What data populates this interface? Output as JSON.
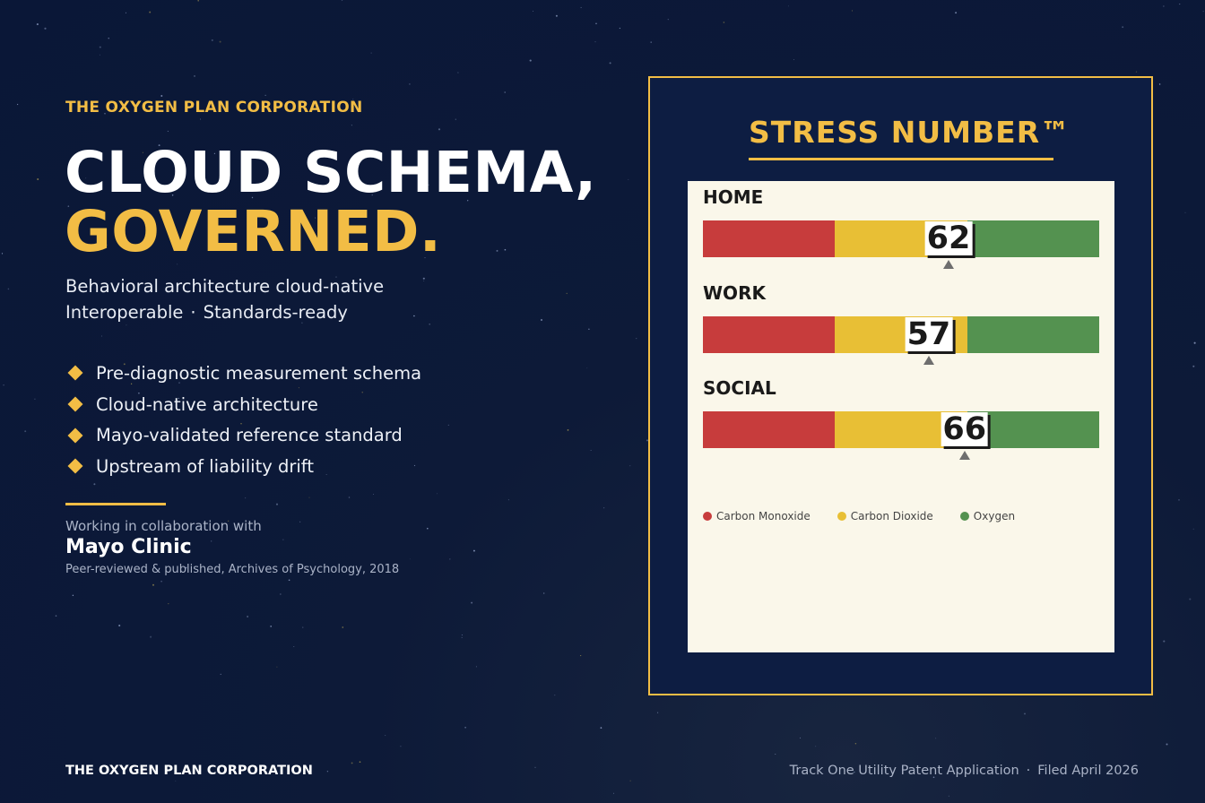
{
  "left": {
    "kicker": "THE OXYGEN PLAN CORPORATION",
    "headline_line1": "CLOUD SCHEMA,",
    "headline_line2": "GOVERNED.",
    "subtitle_line1": "Behavioral architecture cloud-native",
    "subtitle_line2_a": "Interoperable",
    "subtitle_sep": "·",
    "subtitle_line2_b": "Standards-ready",
    "bullets": [
      "Pre-diagnostic measurement schema",
      "Cloud-native architecture",
      "Mayo-validated reference standard",
      "Upstream of liability drift"
    ],
    "collab_label": "Working in collaboration with",
    "collab_partner": "Mayo Clinic",
    "collab_note": "Peer-reviewed & published, Archives of Psychology, 2018"
  },
  "footer": {
    "left": "THE OXYGEN PLAN CORPORATION",
    "right_a": "Track One Utility Patent Application",
    "right_sep": "·",
    "right_b": "Filed April 2026"
  },
  "panel": {
    "title": "STRESS NUMBER™",
    "scale_max": 100,
    "zones": [
      {
        "name": "Carbon Monoxide",
        "from": 0,
        "to": 33.3,
        "color": "#c73c3c"
      },
      {
        "name": "Carbon Dioxide",
        "from": 33.3,
        "to": 66.7,
        "color": "#e8bf35"
      },
      {
        "name": "Oxygen",
        "from": 66.7,
        "to": 100,
        "color": "#549250"
      }
    ],
    "rows": [
      {
        "label": "HOME",
        "value": 62
      },
      {
        "label": "WORK",
        "value": 57
      },
      {
        "label": "SOCIAL",
        "value": 66
      }
    ]
  },
  "colors": {
    "accent": "#f2bd45",
    "background": "#0a1737",
    "card": "#faf7ea"
  }
}
